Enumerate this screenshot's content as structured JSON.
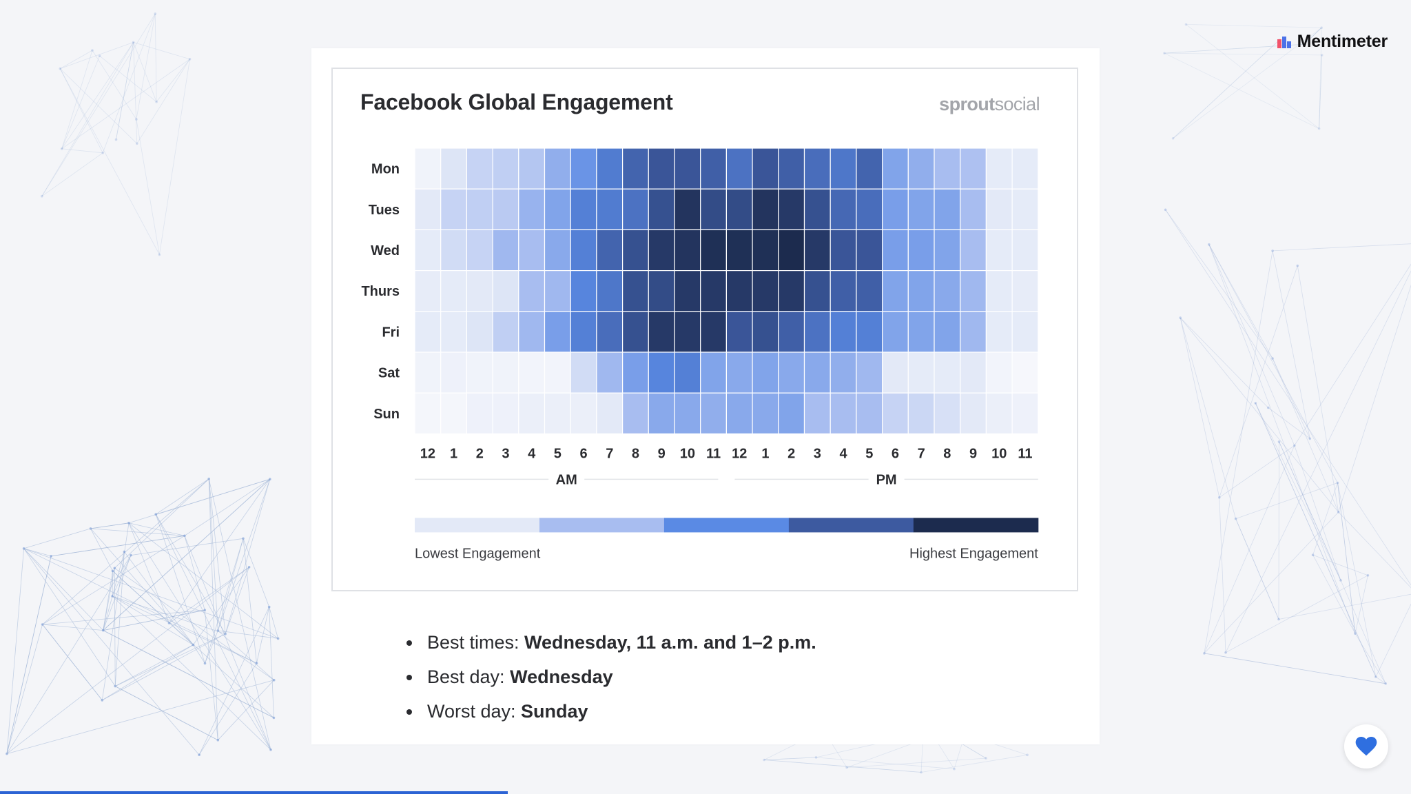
{
  "app": {
    "brand": "Mentimeter",
    "brand_colors": [
      "#f2526a",
      "#4c72e8"
    ]
  },
  "progress": {
    "fraction": 0.36,
    "color": "#2c63d4"
  },
  "card": {
    "title": "Facebook Global Engagement",
    "source_logo": {
      "part1": "sprout",
      "part2": "social"
    }
  },
  "chart_data": {
    "type": "heatmap",
    "title": "Facebook Global Engagement",
    "rows": [
      "Mon",
      "Tues",
      "Wed",
      "Thurs",
      "Fri",
      "Sat",
      "Sun"
    ],
    "columns": [
      "12",
      "1",
      "2",
      "3",
      "4",
      "5",
      "6",
      "7",
      "8",
      "9",
      "10",
      "11",
      "12",
      "1",
      "2",
      "3",
      "4",
      "5",
      "6",
      "7",
      "8",
      "9",
      "10",
      "11"
    ],
    "period_labels": [
      "AM",
      "PM"
    ],
    "values": [
      [
        0.4,
        1.1,
        1.5,
        1.6,
        1.8,
        2.3,
        2.8,
        3.3,
        3.8,
        4.1,
        4.1,
        3.9,
        3.5,
        4.1,
        3.9,
        3.6,
        3.4,
        3.8,
        2.5,
        2.3,
        2.0,
        1.9,
        0.9,
        0.9
      ],
      [
        1.0,
        1.5,
        1.6,
        1.7,
        2.2,
        2.5,
        3.2,
        3.3,
        3.5,
        4.2,
        4.8,
        4.3,
        4.3,
        4.8,
        4.7,
        4.2,
        3.7,
        3.6,
        2.6,
        2.5,
        2.5,
        2.0,
        1.0,
        0.9
      ],
      [
        0.9,
        1.3,
        1.5,
        2.1,
        2.0,
        2.4,
        3.2,
        3.8,
        4.2,
        4.7,
        4.8,
        4.9,
        4.9,
        4.9,
        5.0,
        4.7,
        4.1,
        4.1,
        2.6,
        2.6,
        2.5,
        2.0,
        0.9,
        0.9
      ],
      [
        0.8,
        0.9,
        1.0,
        1.1,
        2.0,
        2.1,
        3.1,
        3.4,
        4.2,
        4.3,
        4.7,
        4.7,
        4.7,
        4.7,
        4.7,
        4.2,
        3.9,
        3.9,
        2.5,
        2.5,
        2.4,
        2.1,
        0.9,
        0.8
      ],
      [
        0.9,
        0.9,
        1.1,
        1.6,
        2.1,
        2.6,
        3.2,
        3.6,
        4.2,
        4.7,
        4.7,
        4.7,
        4.1,
        4.2,
        3.9,
        3.5,
        3.2,
        3.2,
        2.5,
        2.5,
        2.5,
        2.1,
        0.9,
        0.9
      ],
      [
        0.4,
        0.5,
        0.4,
        0.4,
        0.3,
        0.3,
        1.3,
        2.1,
        2.6,
        3.1,
        3.2,
        2.5,
        2.4,
        2.5,
        2.4,
        2.4,
        2.3,
        2.1,
        1.0,
        0.9,
        0.9,
        1.0,
        0.3,
        0.1
      ],
      [
        0.2,
        0.2,
        0.5,
        0.5,
        0.6,
        0.6,
        0.6,
        1.0,
        2.0,
        2.4,
        2.4,
        2.3,
        2.4,
        2.4,
        2.5,
        2.0,
        2.0,
        2.0,
        1.5,
        1.4,
        1.2,
        1.0,
        0.6,
        0.5
      ]
    ],
    "scale": {
      "min": 0,
      "max": 5,
      "low_label": "Lowest Engagement",
      "high_label": "Highest Engagement"
    },
    "legend_colors": [
      "#e3e9f7",
      "#a8bdf0",
      "#5a8ae4",
      "#3d5aa0",
      "#1c2b4e"
    ]
  },
  "bullets": [
    {
      "label": "Best times: ",
      "value": "Wednesday, 11 a.m. and 1–2 p.m."
    },
    {
      "label": "Best day: ",
      "value": "Wednesday"
    },
    {
      "label": "Worst day: ",
      "value": "Sunday"
    }
  ]
}
